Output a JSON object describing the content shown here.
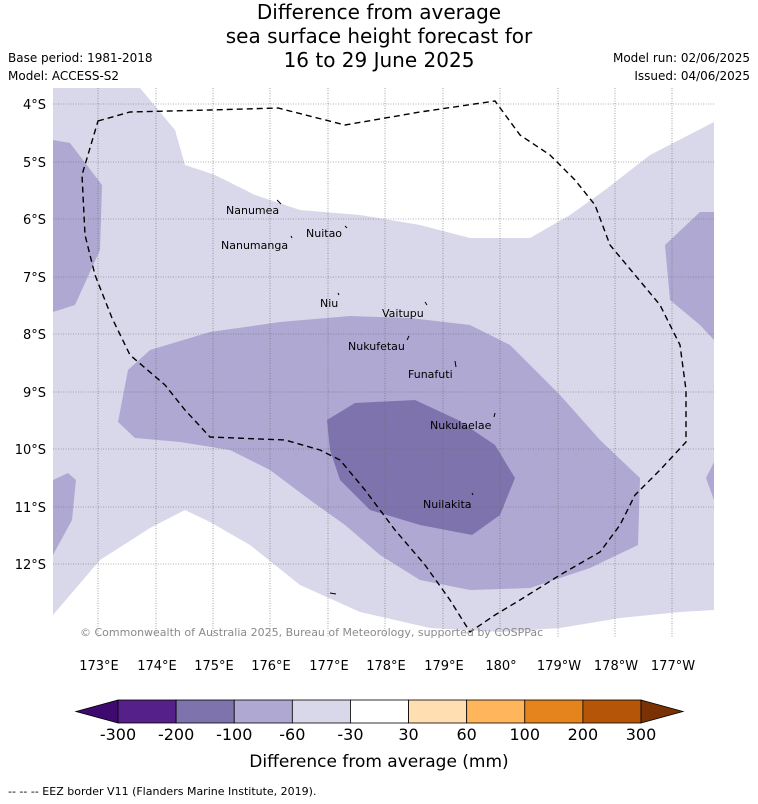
{
  "title": {
    "line1": "Difference from average",
    "line2": "sea surface height forecast for",
    "line3": "16 to 29 June 2025"
  },
  "meta": {
    "base_period": "Base period: 1981-2018",
    "model": "Model: ACCESS-S2",
    "model_run": "Model run: 02/06/2025",
    "issued": "Issued: 04/06/2025"
  },
  "map": {
    "lat_labels": [
      "4°S",
      "5°S",
      "6°S",
      "7°S",
      "8°S",
      "9°S",
      "10°S",
      "11°S",
      "12°S"
    ],
    "lon_labels": [
      "173°E",
      "174°E",
      "175°E",
      "176°E",
      "177°E",
      "178°E",
      "179°E",
      "180°",
      "179°W",
      "178°W",
      "177°W"
    ],
    "islands": [
      "Nanumea",
      "Nuitao",
      "Nanumanga",
      "Niu",
      "Vaitupu",
      "Nukufetau",
      "Funafuti",
      "Nukulaelae",
      "Nuilakita"
    ],
    "copyright": "© Commonwealth of Australia 2025, Bureau of Meteorology, supported by COSPPac"
  },
  "colorbar": {
    "ticks": [
      "-300",
      "-200",
      "-100",
      "-60",
      "-30",
      "30",
      "60",
      "100",
      "200",
      "300"
    ],
    "colors": [
      "#3f0a70",
      "#56208a",
      "#7f73ad",
      "#afa8d2",
      "#d8d8ea",
      "#ffffff",
      "#ffdfb1",
      "#ffb55c",
      "#e5841c",
      "#b55508",
      "#7a3103"
    ],
    "label": "Difference from average (mm)"
  },
  "footnote": "--  --  -- EEZ border V11 (Flanders Marine Institute, 2019)."
}
